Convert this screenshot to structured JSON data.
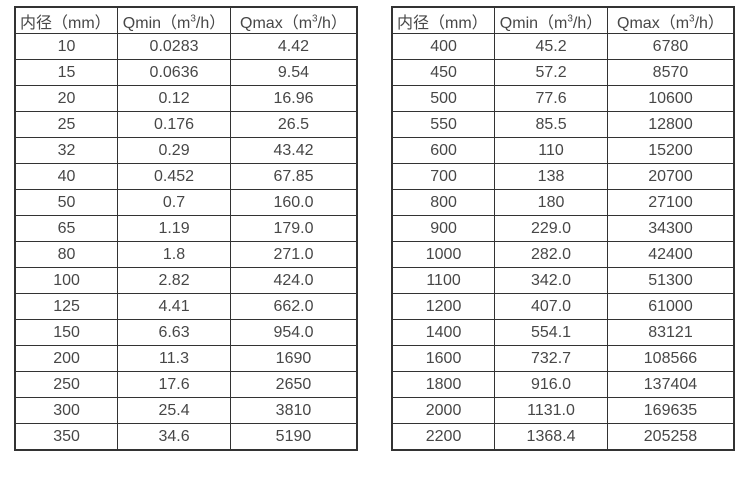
{
  "page": {
    "background": "#ffffff",
    "text_color": "#474747",
    "border_color": "#333333"
  },
  "tables": [
    {
      "name": "flow-table-small-diameters",
      "column_names": [
        "diameter",
        "qmin",
        "qmax"
      ],
      "headers": [
        {
          "pre": "内径（mm）",
          "sup": "",
          "post": ""
        },
        {
          "pre": "Qmin（m",
          "sup": "3",
          "post": "/h）"
        },
        {
          "pre": "Qmax（m",
          "sup": "3",
          "post": "/h）"
        }
      ],
      "rows": [
        [
          "10",
          "0.0283",
          "4.42"
        ],
        [
          "15",
          "0.0636",
          "9.54"
        ],
        [
          "20",
          "0.12",
          "16.96"
        ],
        [
          "25",
          "0.176",
          "26.5"
        ],
        [
          "32",
          "0.29",
          "43.42"
        ],
        [
          "40",
          "0.452",
          "67.85"
        ],
        [
          "50",
          "0.7",
          "160.0"
        ],
        [
          "65",
          "1.19",
          "179.0"
        ],
        [
          "80",
          "1.8",
          "271.0"
        ],
        [
          "100",
          "2.82",
          "424.0"
        ],
        [
          "125",
          "4.41",
          "662.0"
        ],
        [
          "150",
          "6.63",
          "954.0"
        ],
        [
          "200",
          "11.3",
          "1690"
        ],
        [
          "250",
          "17.6",
          "2650"
        ],
        [
          "300",
          "25.4",
          "3810"
        ],
        [
          "350",
          "34.6",
          "5190"
        ]
      ]
    },
    {
      "name": "flow-table-large-diameters",
      "column_names": [
        "diameter",
        "qmin",
        "qmax"
      ],
      "headers": [
        {
          "pre": "内径（mm）",
          "sup": "",
          "post": ""
        },
        {
          "pre": "Qmin（m",
          "sup": "3",
          "post": "/h）"
        },
        {
          "pre": "Qmax（m",
          "sup": "3",
          "post": "/h）"
        }
      ],
      "rows": [
        [
          "400",
          "45.2",
          "6780"
        ],
        [
          "450",
          "57.2",
          "8570"
        ],
        [
          "500",
          "77.6",
          "10600"
        ],
        [
          "550",
          "85.5",
          "12800"
        ],
        [
          "600",
          "110",
          "15200"
        ],
        [
          "700",
          "138",
          "20700"
        ],
        [
          "800",
          "180",
          "27100"
        ],
        [
          "900",
          "229.0",
          "34300"
        ],
        [
          "1000",
          "282.0",
          "42400"
        ],
        [
          "1100",
          "342.0",
          "51300"
        ],
        [
          "1200",
          "407.0",
          "61000"
        ],
        [
          "1400",
          "554.1",
          "83121"
        ],
        [
          "1600",
          "732.7",
          "108566"
        ],
        [
          "1800",
          "916.0",
          "137404"
        ],
        [
          "2000",
          "1131.0",
          "169635"
        ],
        [
          "2200",
          "1368.4",
          "205258"
        ]
      ]
    }
  ]
}
